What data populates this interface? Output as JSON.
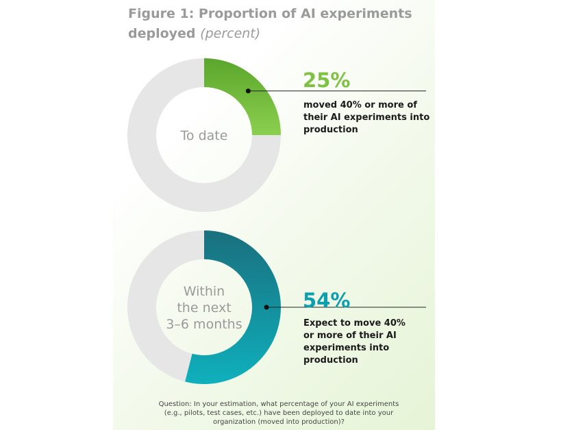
{
  "title": {
    "main": "Figure 1: Proportion of AI experiments deployed",
    "unit": "(percent)"
  },
  "colors": {
    "track": "#e6e6e6",
    "to_date": "#7dc242",
    "next": "#0c9fae",
    "text_gray": "#9a9a9a"
  },
  "chart_data": [
    {
      "type": "pie",
      "center_label": "To date",
      "value": 25,
      "value_label": "25%",
      "description": [
        "moved 40% or more of",
        "their AI experiments into",
        "production"
      ],
      "color": "#7dc242"
    },
    {
      "type": "pie",
      "center_label": [
        "Within",
        "the next",
        "3–6 months"
      ],
      "value": 54,
      "value_label": "54%",
      "description": [
        "Expect to move 40%",
        "or more of their AI",
        "experiments into",
        "production"
      ],
      "color": "#0c9fae"
    }
  ],
  "question": [
    "Question: In your estimation, what percentage of your AI experiments",
    "(e.g., pilots, test cases, etc.) have been deployed to date into your",
    "organization (moved into production)?"
  ]
}
